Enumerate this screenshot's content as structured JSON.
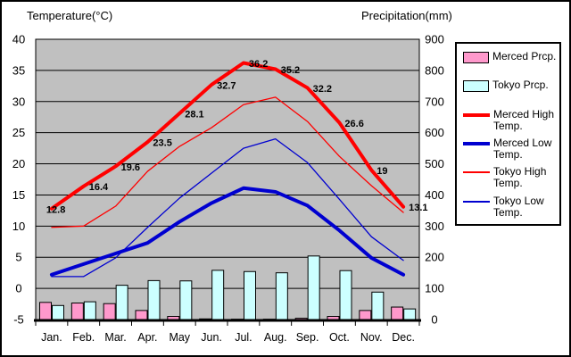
{
  "titles": {
    "temperature_axis": "Temperature(°C)",
    "precipitation_axis": "Precipitation(mm)"
  },
  "axes": {
    "temperature": {
      "title": "Temperature(°C)",
      "min": -5,
      "max": 40,
      "ticks": [
        40,
        35,
        30,
        25,
        20,
        15,
        10,
        5,
        0,
        -5
      ]
    },
    "precipitation": {
      "title": "Precipitation(mm)",
      "min": 0,
      "max": 900,
      "ticks": [
        900,
        800,
        700,
        600,
        500,
        400,
        300,
        200,
        100,
        0
      ]
    }
  },
  "chart_data": {
    "type": "bar+line combo climate chart",
    "categories": [
      "Jan.",
      "Feb.",
      "Mar.",
      "Apr.",
      "May",
      "Jun.",
      "Jul.",
      "Aug.",
      "Sep.",
      "Oct.",
      "Nov.",
      "Dec."
    ],
    "plot_background": "#c0c0c0",
    "grid": "horizontal lines every 5°C",
    "ylim_temperature": [
      -5,
      40
    ],
    "ylim_precipitation": [
      0,
      900
    ],
    "legend_position": "right",
    "series": [
      {
        "name": "Merced Prcp.",
        "type": "bar",
        "axis": "precipitation",
        "color": "#ff99cc",
        "values": [
          55,
          53,
          51,
          29,
          10,
          2,
          1,
          1,
          4,
          10,
          29,
          40
        ]
      },
      {
        "name": "Tokyo Prcp.",
        "type": "bar",
        "axis": "precipitation",
        "color": "#ccffff",
        "values": [
          45,
          57,
          110,
          125,
          124,
          158,
          154,
          150,
          204,
          157,
          88,
          34
        ]
      },
      {
        "name": "Tokyo High Temp.",
        "type": "line",
        "axis": "temperature",
        "color": "#ff0000",
        "width": 1.3,
        "values": [
          9.8,
          10,
          13.2,
          18.8,
          22.8,
          25.8,
          29.5,
          30.7,
          26.8,
          21.2,
          16.5,
          12.2
        ]
      },
      {
        "name": "Tokyo Low Temp.",
        "type": "line",
        "axis": "temperature",
        "color": "#0000d0",
        "width": 1.3,
        "values": [
          1.9,
          1.9,
          4.9,
          9.8,
          14.5,
          18.5,
          22.5,
          24,
          20.2,
          14.3,
          8.3,
          4.5
        ]
      },
      {
        "name": "Merced Low Temp.",
        "type": "line",
        "axis": "temperature",
        "color": "#0000d0",
        "width": 4,
        "values": [
          2.2,
          3.9,
          5.6,
          7.3,
          10.7,
          13.7,
          16.1,
          15.5,
          13.3,
          9.3,
          4.9,
          2.2
        ]
      },
      {
        "name": "Merced High Temp.",
        "type": "line",
        "axis": "temperature",
        "color": "#ff0000",
        "width": 4,
        "values": [
          12.8,
          16.4,
          19.6,
          23.5,
          28.1,
          32.7,
          36.2,
          35.2,
          32.2,
          26.6,
          19,
          13.1
        ],
        "labels": [
          "12.8",
          "16.4",
          "19.6",
          "23.5",
          "28.1",
          "32.7",
          "36.2",
          "35.2",
          "32.2",
          "26.6",
          "19",
          "13.1"
        ]
      }
    ]
  },
  "legend": {
    "items": [
      {
        "label": "Merced Prcp.",
        "type": "bar",
        "thick": false,
        "color": "#ff99cc",
        "icon": "merced-precip-swatch"
      },
      {
        "label": "Tokyo Prcp.",
        "type": "bar",
        "thick": false,
        "color": "#ccffff",
        "icon": "tokyo-precip-swatch"
      },
      {
        "label": "Merced High Temp.",
        "type": "line",
        "thick": true,
        "color": "#ff0000",
        "icon": "merced-high-line-swatch"
      },
      {
        "label": "Merced Low Temp.",
        "type": "line",
        "thick": true,
        "color": "#0000d0",
        "icon": "merced-low-line-swatch"
      },
      {
        "label": "Tokyo High Temp.",
        "type": "line",
        "thick": false,
        "color": "#ff0000",
        "icon": "tokyo-high-line-swatch"
      },
      {
        "label": "Tokyo Low Temp.",
        "type": "line",
        "thick": false,
        "color": "#0000d0",
        "icon": "tokyo-low-line-swatch"
      }
    ]
  },
  "colors": {
    "plot_background": "#c0c0c0",
    "merced_precip": "#ff99cc",
    "tokyo_precip": "#ccffff",
    "high_temp_line": "#ff0000",
    "low_temp_line": "#0000d0",
    "grid_and_border": "#000000"
  }
}
